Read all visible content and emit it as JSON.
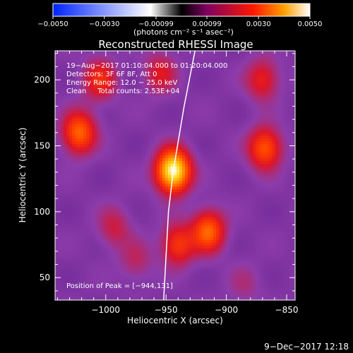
{
  "chart_data": {
    "type": "heatmap",
    "title": "Reconstructed RHESSI Image",
    "xlabel": "Heliocentric X (arcsec)",
    "ylabel": "Heliocentric Y (arcsec)",
    "xlim": [
      -1042,
      -843
    ],
    "ylim": [
      33,
      222
    ],
    "xticks": [
      -1000,
      -950,
      -900,
      -850
    ],
    "xtick_labels": [
      "−1000",
      "−950",
      "−900",
      "−850"
    ],
    "yticks": [
      50,
      100,
      150,
      200
    ],
    "ytick_labels": [
      "50",
      "100",
      "150",
      "200"
    ],
    "colorbar": {
      "colormap": [
        "#0000ff",
        "#ffffff",
        "#000000",
        "#800080",
        "#ff0000",
        "#ffa500",
        "#ffffff"
      ],
      "range": [
        -0.005,
        0.005
      ],
      "ticks": [
        -0.005,
        -0.003,
        -0.00099,
        0.00099,
        0.003,
        0.005
      ],
      "tick_labels": [
        "−0.0050",
        "−0.0030",
        "−0.00099",
        "0.00099",
        "0.0030",
        "0.0050"
      ],
      "unit_label": "(photons cm⁻² s⁻¹ asec⁻²)"
    },
    "info_lines": [
      "19−Aug−2017 01:10:04.000 to 01:20:04.000",
      "Detectors: 3F 6F 8F, Att 0",
      "Energy Range: 12.0 − 25.0 keV",
      "Clean     Total counts: 2.53E+04"
    ],
    "peak_label": "Position of Peak = [−944,131]",
    "peak": [
      -944,
      131
    ],
    "sources": [
      {
        "x": -944,
        "y": 131,
        "value": 0.005
      },
      {
        "x": -1022,
        "y": 160,
        "value": 0.003
      },
      {
        "x": -1005,
        "y": 200,
        "value": 0.0022
      },
      {
        "x": -915,
        "y": 85,
        "value": 0.003
      },
      {
        "x": -940,
        "y": 75,
        "value": 0.0024
      },
      {
        "x": -868,
        "y": 148,
        "value": 0.0028
      },
      {
        "x": -870,
        "y": 200,
        "value": 0.002
      },
      {
        "x": -955,
        "y": 205,
        "value": 0.0018
      },
      {
        "x": -993,
        "y": 88,
        "value": 0.0016
      },
      {
        "x": -975,
        "y": 63,
        "value": 0.0014
      },
      {
        "x": -885,
        "y": 45,
        "value": 0.0012
      }
    ],
    "limb_curve": [
      [
        -926,
        222
      ],
      [
        -935,
        180
      ],
      [
        -944,
        131
      ],
      [
        -948,
        100
      ],
      [
        -952,
        33
      ]
    ],
    "grid": false
  },
  "timestamp": "9−Dec−2017 12:18"
}
